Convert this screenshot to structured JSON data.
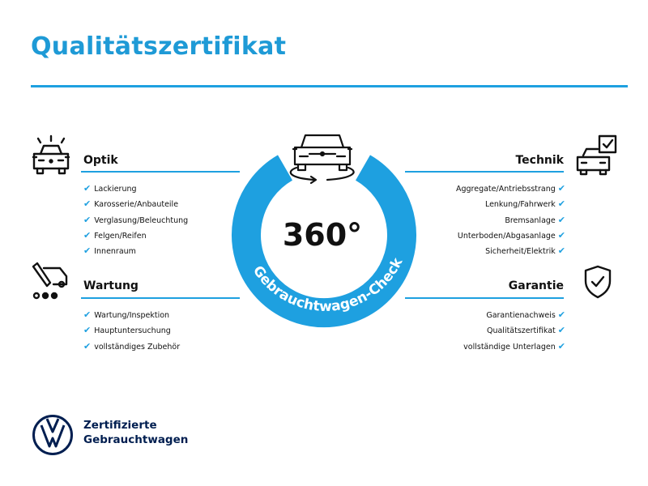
{
  "title": "Qualitätszertifikat",
  "center": {
    "degrees": "360°",
    "ring_text": "Gebrauchtwagen-Check",
    "accent_color": "#1ea0e0"
  },
  "sections": {
    "optik": {
      "title": "Optik",
      "icon": "car-lights-icon",
      "items": [
        "Lackierung",
        "Karosserie/Anbauteile",
        "Verglasung/Beleuchtung",
        "Felgen/Reifen",
        "Innenraum"
      ]
    },
    "wartung": {
      "title": "Wartung",
      "icon": "service-tools-icon",
      "items": [
        "Wartung/Inspektion",
        "Hauptuntersuchung",
        "vollständiges Zubehör"
      ]
    },
    "technik": {
      "title": "Technik",
      "icon": "car-checklist-icon",
      "items": [
        "Aggregate/Antriebsstrang",
        "Lenkung/Fahrwerk",
        "Bremsanlage",
        "Unterboden/Abgasanlage",
        "Sicherheit/Elektrik"
      ]
    },
    "garantie": {
      "title": "Garantie",
      "icon": "shield-check-icon",
      "items": [
        "Garantienachweis",
        "Qualitätszertifikat",
        "vollständige Unterlagen"
      ]
    }
  },
  "check_mark": "✔",
  "brand": {
    "line1": "Zertifizierte",
    "line2": "Gebrauchtwagen",
    "logo": "vw-logo",
    "color": "#001e50"
  }
}
